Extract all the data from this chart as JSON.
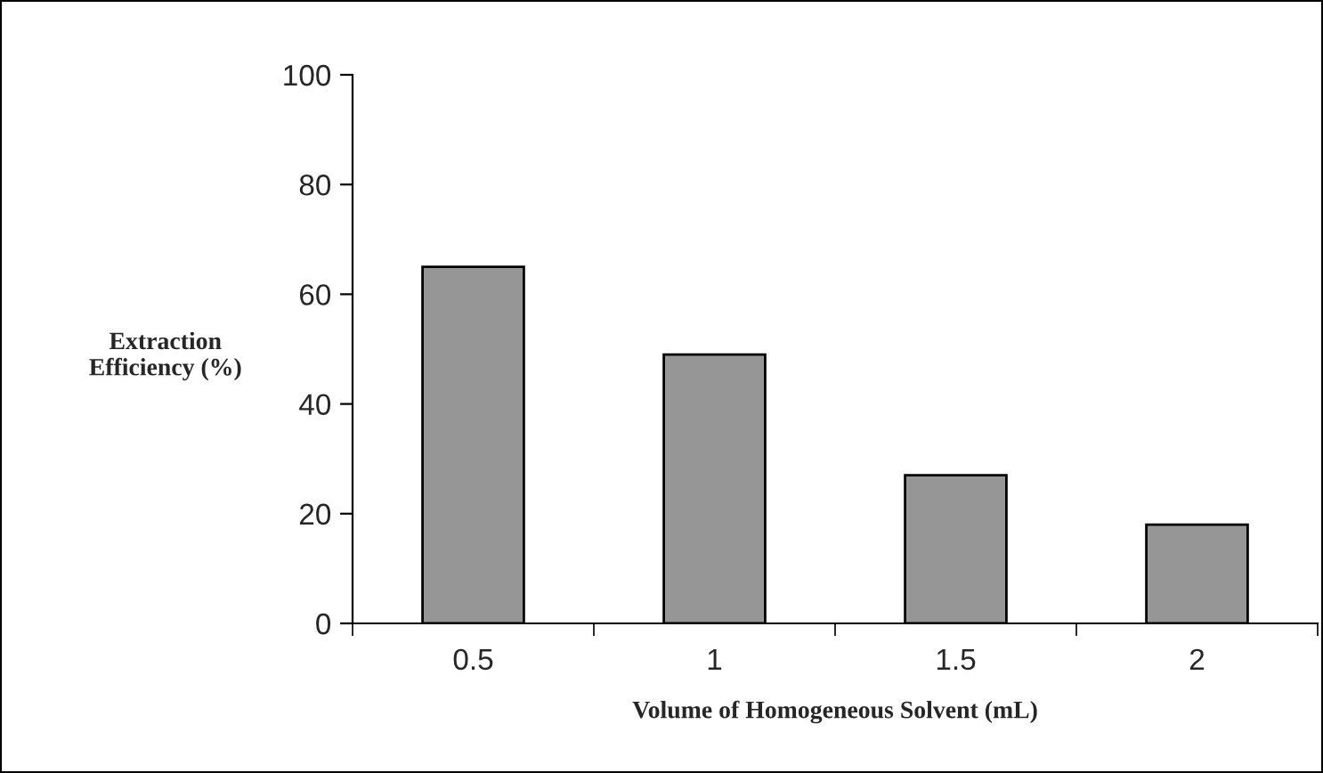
{
  "chart_data": {
    "type": "bar",
    "xlabel": "Volume of Homogeneous Solvent (mL)",
    "ylabel": "Extraction\nEfficiency (%)",
    "categories": [
      "0.5",
      "1",
      "1.5",
      "2"
    ],
    "values": [
      65,
      49,
      27,
      18
    ],
    "color": "#969696",
    "ylim": [
      0,
      100
    ],
    "yticks": [
      0,
      20,
      40,
      60,
      80,
      100
    ],
    "grid": false,
    "legend": false
  }
}
